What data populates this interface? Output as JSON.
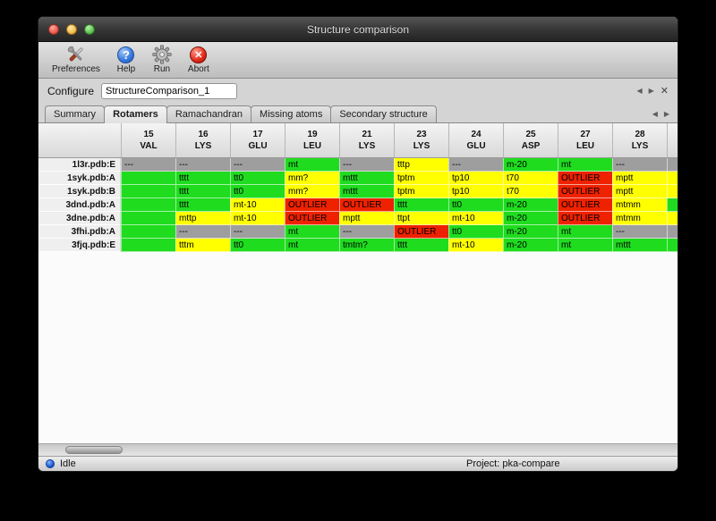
{
  "window": {
    "title": "Structure comparison"
  },
  "toolbar": {
    "items": [
      {
        "label": "Preferences"
      },
      {
        "label": "Help"
      },
      {
        "label": "Run"
      },
      {
        "label": "Abort"
      }
    ]
  },
  "configure": {
    "label": "Configure",
    "value": "StructureComparison_1"
  },
  "nav": {
    "prev": "◀",
    "next": "▶",
    "close": "✕"
  },
  "tabs": [
    {
      "label": "Summary",
      "selected": false
    },
    {
      "label": "Rotamers",
      "selected": true
    },
    {
      "label": "Ramachandran",
      "selected": false
    },
    {
      "label": "Missing atoms",
      "selected": false
    },
    {
      "label": "Secondary structure",
      "selected": false
    }
  ],
  "status_colors": {
    "ok": "#1fdc1f",
    "warn": "#ffff00",
    "outlier": "#ee2200",
    "na": "#9e9e9e"
  },
  "table": {
    "columns": [
      {
        "num": "15",
        "res": "VAL"
      },
      {
        "num": "16",
        "res": "LYS"
      },
      {
        "num": "17",
        "res": "GLU"
      },
      {
        "num": "19",
        "res": "LEU"
      },
      {
        "num": "21",
        "res": "LYS"
      },
      {
        "num": "23",
        "res": "LYS"
      },
      {
        "num": "24",
        "res": "GLU"
      },
      {
        "num": "25",
        "res": "ASP"
      },
      {
        "num": "27",
        "res": "LEU"
      },
      {
        "num": "28",
        "res": "LYS"
      }
    ],
    "rows": [
      {
        "label": "1l3r.pdb:E",
        "partial": "na",
        "cells": [
          {
            "text": "---",
            "status": "na"
          },
          {
            "text": "---",
            "status": "na"
          },
          {
            "text": "---",
            "status": "na"
          },
          {
            "text": "mt",
            "status": "ok"
          },
          {
            "text": "---",
            "status": "na"
          },
          {
            "text": "tttp",
            "status": "warn"
          },
          {
            "text": "---",
            "status": "na"
          },
          {
            "text": "m-20",
            "status": "ok"
          },
          {
            "text": "mt",
            "status": "ok"
          },
          {
            "text": "---",
            "status": "na"
          }
        ]
      },
      {
        "label": "1syk.pdb:A",
        "partial": "warn",
        "cells": [
          {
            "text": "",
            "status": "ok"
          },
          {
            "text": "tttt",
            "status": "ok"
          },
          {
            "text": "tt0",
            "status": "ok"
          },
          {
            "text": "mm?",
            "status": "warn"
          },
          {
            "text": "mttt",
            "status": "ok"
          },
          {
            "text": "tptm",
            "status": "warn"
          },
          {
            "text": "tp10",
            "status": "warn"
          },
          {
            "text": "t70",
            "status": "warn"
          },
          {
            "text": "OUTLIER",
            "status": "outlier"
          },
          {
            "text": "mptt",
            "status": "warn"
          }
        ]
      },
      {
        "label": "1syk.pdb:B",
        "partial": "warn",
        "cells": [
          {
            "text": "",
            "status": "ok"
          },
          {
            "text": "tttt",
            "status": "ok"
          },
          {
            "text": "tt0",
            "status": "ok"
          },
          {
            "text": "mm?",
            "status": "warn"
          },
          {
            "text": "mttt",
            "status": "ok"
          },
          {
            "text": "tptm",
            "status": "warn"
          },
          {
            "text": "tp10",
            "status": "warn"
          },
          {
            "text": "t70",
            "status": "warn"
          },
          {
            "text": "OUTLIER",
            "status": "outlier"
          },
          {
            "text": "mptt",
            "status": "warn"
          }
        ]
      },
      {
        "label": "3dnd.pdb:A",
        "partial": "ok",
        "cells": [
          {
            "text": "",
            "status": "ok"
          },
          {
            "text": "tttt",
            "status": "ok"
          },
          {
            "text": "mt-10",
            "status": "warn"
          },
          {
            "text": "OUTLIER",
            "status": "outlier"
          },
          {
            "text": "OUTLIER",
            "status": "outlier"
          },
          {
            "text": "tttt",
            "status": "ok"
          },
          {
            "text": "tt0",
            "status": "ok"
          },
          {
            "text": "m-20",
            "status": "ok"
          },
          {
            "text": "OUTLIER",
            "status": "outlier"
          },
          {
            "text": "mtmm",
            "status": "warn"
          }
        ]
      },
      {
        "label": "3dne.pdb:A",
        "partial": "warn",
        "cells": [
          {
            "text": "",
            "status": "ok"
          },
          {
            "text": "mttp",
            "status": "warn"
          },
          {
            "text": "mt-10",
            "status": "warn"
          },
          {
            "text": "OUTLIER",
            "status": "outlier"
          },
          {
            "text": "mptt",
            "status": "warn"
          },
          {
            "text": "ttpt",
            "status": "warn"
          },
          {
            "text": "mt-10",
            "status": "warn"
          },
          {
            "text": "m-20",
            "status": "ok"
          },
          {
            "text": "OUTLIER",
            "status": "outlier"
          },
          {
            "text": "mtmm",
            "status": "warn"
          }
        ]
      },
      {
        "label": "3fhi.pdb:A",
        "partial": "na",
        "cells": [
          {
            "text": "",
            "status": "ok"
          },
          {
            "text": "---",
            "status": "na"
          },
          {
            "text": "---",
            "status": "na"
          },
          {
            "text": "mt",
            "status": "ok"
          },
          {
            "text": "---",
            "status": "na"
          },
          {
            "text": "OUTLIER",
            "status": "outlier"
          },
          {
            "text": "tt0",
            "status": "ok"
          },
          {
            "text": "m-20",
            "status": "ok"
          },
          {
            "text": "mt",
            "status": "ok"
          },
          {
            "text": "---",
            "status": "na"
          }
        ]
      },
      {
        "label": "3fjq.pdb:E",
        "partial": "ok",
        "cells": [
          {
            "text": "",
            "status": "ok"
          },
          {
            "text": "tttm",
            "status": "warn"
          },
          {
            "text": "tt0",
            "status": "ok"
          },
          {
            "text": "mt",
            "status": "ok"
          },
          {
            "text": "tmtm?",
            "status": "ok"
          },
          {
            "text": "tttt",
            "status": "ok"
          },
          {
            "text": "mt-10",
            "status": "warn"
          },
          {
            "text": "m-20",
            "status": "ok"
          },
          {
            "text": "mt",
            "status": "ok"
          },
          {
            "text": "mttt",
            "status": "ok"
          }
        ]
      }
    ]
  },
  "statusbar": {
    "status": "Idle",
    "project": "Project: pka-compare"
  }
}
